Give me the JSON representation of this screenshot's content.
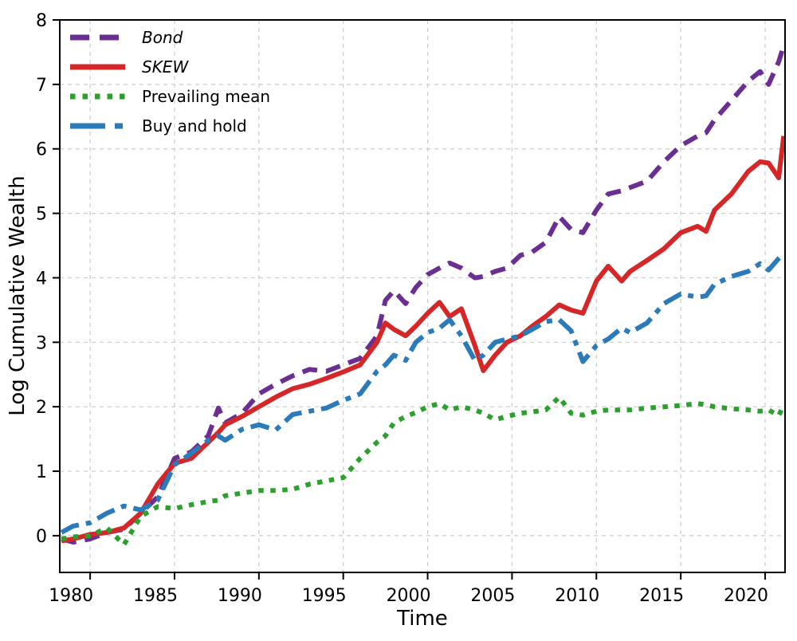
{
  "chart_data": {
    "type": "line",
    "title": "",
    "xlabel": "Time",
    "ylabel": "Log Cumulative Wealth",
    "xlim": [
      1978.2,
      2021.18
    ],
    "ylim": [
      -0.57,
      8.0
    ],
    "xticks": [
      1980,
      1985,
      1990,
      1995,
      2000,
      2005,
      2010,
      2015,
      2020
    ],
    "yticks": [
      0,
      1,
      2,
      3,
      4,
      5,
      6,
      7,
      8
    ],
    "grid": true,
    "grid_color": "#cccccc",
    "legend_position": "upper-left",
    "legend_frame": false,
    "x": [
      1978.3,
      1979,
      1980,
      1981,
      1982,
      1983,
      1984,
      1985,
      1986,
      1987,
      1987.6,
      1988,
      1989,
      1990,
      1991,
      1992,
      1993,
      1994,
      1995,
      1996,
      1997,
      1997.5,
      1998,
      1998.7,
      1999.3,
      2000,
      2000.7,
      2001.3,
      2002,
      2002.8,
      2003.3,
      2004,
      2004.7,
      2005.5,
      2006.2,
      2007,
      2007.8,
      2008.5,
      2009.2,
      2010,
      2010.7,
      2011.5,
      2012,
      2013,
      2014,
      2015,
      2016,
      2016.5,
      2017,
      2018,
      2019,
      2019.7,
      2020.2,
      2020.8,
      2021.1
    ],
    "series": [
      {
        "name": "Bond",
        "color": "#6b2f94",
        "style": "dashed",
        "italic": true,
        "values": [
          -0.05,
          -0.1,
          -0.05,
          0.05,
          0.1,
          0.35,
          0.6,
          1.2,
          1.3,
          1.55,
          1.98,
          1.75,
          1.9,
          2.2,
          2.35,
          2.48,
          2.58,
          2.55,
          2.65,
          2.75,
          3.1,
          3.65,
          3.8,
          3.6,
          3.85,
          4.05,
          4.15,
          4.23,
          4.15,
          4.0,
          4.02,
          4.1,
          4.15,
          4.35,
          4.4,
          4.55,
          4.95,
          4.75,
          4.7,
          5.05,
          5.3,
          5.35,
          5.4,
          5.5,
          5.8,
          6.05,
          6.2,
          6.25,
          6.45,
          6.75,
          7.05,
          7.2,
          7.0,
          7.35,
          7.6
        ]
      },
      {
        "name": "SKEW",
        "color": "#d62728",
        "style": "solid",
        "italic": true,
        "values": [
          -0.08,
          -0.05,
          0.02,
          0.05,
          0.12,
          0.35,
          0.8,
          1.12,
          1.2,
          1.45,
          1.6,
          1.72,
          1.85,
          2.0,
          2.15,
          2.28,
          2.35,
          2.44,
          2.54,
          2.65,
          3.0,
          3.3,
          3.2,
          3.1,
          3.25,
          3.45,
          3.62,
          3.4,
          3.52,
          2.95,
          2.56,
          2.8,
          3.0,
          3.1,
          3.25,
          3.4,
          3.58,
          3.5,
          3.45,
          3.95,
          4.18,
          3.95,
          4.1,
          4.27,
          4.45,
          4.7,
          4.8,
          4.72,
          5.05,
          5.3,
          5.65,
          5.8,
          5.78,
          5.55,
          6.2
        ]
      },
      {
        "name": "Prevailing mean",
        "color": "#2ca02c",
        "style": "dotted",
        "italic": false,
        "values": [
          -0.05,
          -0.02,
          0.0,
          0.12,
          -0.14,
          0.3,
          0.45,
          0.42,
          0.48,
          0.53,
          0.55,
          0.62,
          0.66,
          0.7,
          0.7,
          0.72,
          0.8,
          0.85,
          0.9,
          1.2,
          1.45,
          1.55,
          1.75,
          1.85,
          1.91,
          2.0,
          2.05,
          1.95,
          2.0,
          1.95,
          1.9,
          1.8,
          1.85,
          1.9,
          1.92,
          1.95,
          2.15,
          1.9,
          1.87,
          1.93,
          1.95,
          1.95,
          1.95,
          1.98,
          2.0,
          2.02,
          2.05,
          2.03,
          2.0,
          1.97,
          1.95,
          1.93,
          1.95,
          1.86,
          2.03
        ]
      },
      {
        "name": "Buy and hold",
        "color": "#2b7bba",
        "style": "dashdot",
        "italic": false,
        "values": [
          0.05,
          0.15,
          0.2,
          0.35,
          0.46,
          0.4,
          0.55,
          1.1,
          1.28,
          1.48,
          1.55,
          1.48,
          1.65,
          1.72,
          1.64,
          1.88,
          1.93,
          1.98,
          2.1,
          2.2,
          2.55,
          2.65,
          2.8,
          2.72,
          3.0,
          3.15,
          3.22,
          3.35,
          3.1,
          2.72,
          2.8,
          3.0,
          3.05,
          3.1,
          3.2,
          3.32,
          3.35,
          3.18,
          2.7,
          2.95,
          3.05,
          3.22,
          3.15,
          3.3,
          3.6,
          3.75,
          3.7,
          3.72,
          3.9,
          4.02,
          4.1,
          4.22,
          4.12,
          4.3,
          4.38
        ]
      }
    ]
  }
}
